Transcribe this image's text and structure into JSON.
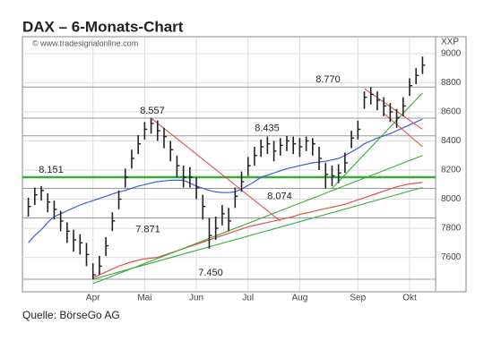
{
  "chart_data": {
    "type": "ohlc",
    "title": "DAX – 6-Monats-Chart",
    "watermark": "© www.tradesignalonline.com",
    "unit_label": "XXP",
    "source": "Quelle: BörseGo AG",
    "categories": [
      null,
      null,
      null,
      null,
      null,
      null,
      null,
      null,
      null,
      null,
      "Apr",
      null,
      null,
      null,
      null,
      null,
      null,
      null,
      "Mai",
      null,
      null,
      null,
      null,
      null,
      null,
      null,
      "Jun",
      null,
      null,
      null,
      null,
      null,
      null,
      null,
      "Jul",
      null,
      null,
      null,
      null,
      null,
      null,
      null,
      "Aug",
      null,
      null,
      null,
      null,
      null,
      null,
      null,
      null,
      "Sep",
      null,
      null,
      null,
      null,
      null,
      null,
      null,
      "Okt",
      null,
      null
    ],
    "high": [
      8010,
      8080,
      8090,
      8040,
      7990,
      7920,
      7840,
      7790,
      7760,
      7700,
      7560,
      7610,
      7740,
      7910,
      8060,
      8210,
      8340,
      8440,
      8530,
      8557,
      8540,
      8490,
      8400,
      8300,
      8230,
      8220,
      8150,
      8030,
      7870,
      7880,
      7960,
      7940,
      8080,
      8190,
      8290,
      8360,
      8410,
      8430,
      8400,
      8420,
      8435,
      8430,
      8420,
      8430,
      8420,
      8360,
      8250,
      8230,
      8240,
      8320,
      8470,
      8540,
      8740,
      8770,
      8740,
      8700,
      8660,
      8620,
      8700,
      8830,
      8900,
      8980
    ],
    "low": [
      7880,
      7960,
      7990,
      7910,
      7860,
      7780,
      7700,
      7640,
      7620,
      7540,
      7450,
      7480,
      7610,
      7780,
      7930,
      8080,
      8210,
      8310,
      8410,
      8450,
      8400,
      8350,
      8260,
      8150,
      8080,
      8080,
      8000,
      7860,
      7660,
      7720,
      7820,
      7780,
      7940,
      8050,
      8160,
      8230,
      8290,
      8310,
      8260,
      8300,
      8330,
      8310,
      8290,
      8330,
      8300,
      8200,
      8074,
      8090,
      8110,
      8180,
      8350,
      8410,
      8620,
      8650,
      8610,
      8570,
      8530,
      8490,
      8570,
      8710,
      8790,
      8860
    ],
    "close": [
      7950,
      8030,
      8060,
      7980,
      7930,
      7850,
      7780,
      7720,
      7700,
      7620,
      7480,
      7540,
      7680,
      7850,
      8000,
      8150,
      8280,
      8380,
      8480,
      8520,
      8470,
      8430,
      8340,
      8230,
      8150,
      8150,
      8080,
      7950,
      7750,
      7800,
      7900,
      7850,
      8020,
      8120,
      8230,
      8300,
      8360,
      8380,
      8330,
      8370,
      8400,
      8380,
      8360,
      8400,
      8380,
      8280,
      8170,
      8160,
      8180,
      8250,
      8420,
      8480,
      8700,
      8720,
      8680,
      8640,
      8600,
      8560,
      8640,
      8780,
      8850,
      8920
    ],
    "bar_color": "#222222",
    "averages": [
      {
        "color": "#3a5fd9",
        "values": [
          7700,
          7750,
          7790,
          7840,
          7880,
          7900,
          7920,
          7940,
          7960,
          7975,
          7990,
          8005,
          8020,
          8035,
          8050,
          8060,
          8075,
          8090,
          8100,
          8110,
          8120,
          8125,
          8130,
          8130,
          8130,
          8110,
          8090,
          8075,
          8060,
          8050,
          8045,
          8045,
          8050,
          8070,
          8095,
          8120,
          8150,
          8165,
          8180,
          8195,
          8210,
          8220,
          8230,
          8240,
          8250,
          8255,
          8260,
          8270,
          8280,
          8300,
          8325,
          8350,
          8380,
          8400,
          8420,
          8435,
          8450,
          8470,
          8490,
          8510,
          8530,
          8550
        ]
      },
      {
        "color": "#e0504a",
        "values": [
          null,
          null,
          null,
          null,
          null,
          null,
          null,
          null,
          null,
          null,
          7460,
          7480,
          7500,
          7520,
          7540,
          7555,
          7570,
          7580,
          7590,
          7595,
          7600,
          7615,
          7630,
          7645,
          7660,
          7675,
          7690,
          7705,
          7720,
          7735,
          7750,
          7765,
          7780,
          7795,
          7810,
          7820,
          7830,
          7840,
          7850,
          7860,
          7870,
          7880,
          7895,
          7905,
          7915,
          7925,
          7935,
          7945,
          7955,
          7965,
          7980,
          7995,
          8010,
          8025,
          8040,
          8055,
          8070,
          8085,
          8095,
          8105,
          8110,
          8115
        ]
      }
    ],
    "trendlines": [
      {
        "color": "#3aaa3a",
        "x": [
          10,
          61
        ],
        "values": [
          7450,
          8080
        ]
      },
      {
        "color": "#3aaa3a",
        "x": [
          10,
          61
        ],
        "values": [
          7420,
          8300
        ]
      },
      {
        "color": "#3aaa3a",
        "x": [
          47,
          61
        ],
        "values": [
          8074,
          8730
        ]
      },
      {
        "color": "#e0504a",
        "x": [
          19,
          39
        ],
        "values": [
          8557,
          7850
        ]
      },
      {
        "color": "#e0504a",
        "x": [
          52,
          61
        ],
        "values": [
          8760,
          8480
        ]
      },
      {
        "color": "#e0504a",
        "x": [
          55,
          61
        ],
        "values": [
          8590,
          8360
        ]
      }
    ],
    "levels": [
      {
        "value": 8151,
        "label": "8.151",
        "color": "#3aaa3a"
      },
      {
        "value": 8557,
        "label": "8.557",
        "color": "#999999"
      },
      {
        "value": 8435,
        "label": "8.435",
        "color": "#999999"
      },
      {
        "value": 8770,
        "label": "8.770",
        "color": "#999999"
      },
      {
        "value": 8074,
        "label": "8.074",
        "color": "#999999"
      },
      {
        "value": 7871,
        "label": "7.871",
        "color": "#999999"
      },
      {
        "value": 7450,
        "label": "7.450",
        "color": "#999999"
      }
    ],
    "ylim": [
      7370,
      9110
    ],
    "yticks": [
      7600,
      7800,
      8000,
      8200,
      8400,
      8600,
      8800,
      9000
    ],
    "grid": true
  }
}
